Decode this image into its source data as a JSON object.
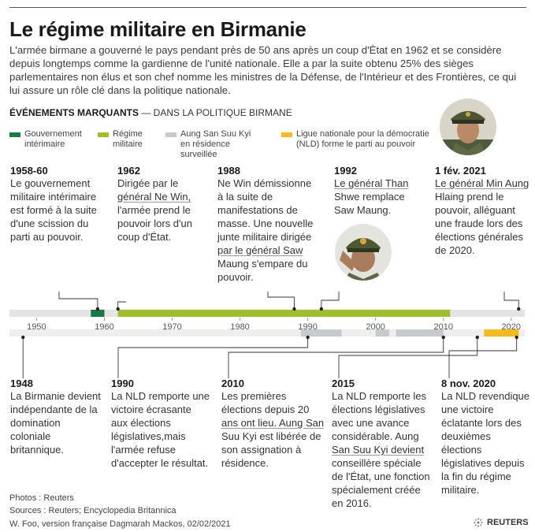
{
  "title": "Le régime militaire en Birmanie",
  "intro": "L'armée birmane a gouverné le pays pendant près de 50 ans après un coup d'État en 1962 et se considère depuis longtemps comme la gardienne de l'unité nationale. Elle a par la suite obtenu 25% des sièges parlementaires non élus et son chef nomme les ministres de la Défense, de l'Intérieur et des Frontières,  ce qui lui assure un rôle clé dans la politique nationale.",
  "subhead": {
    "bold": "ÉVÉNEMENTS MARQUANTS",
    "rest": " — DANS LA POLITIQUE BIRMANE"
  },
  "legend": [
    {
      "label_1": "Gouvernement",
      "label_2": "intérimaire",
      "color": "#1a7a45"
    },
    {
      "label_1": "Régime",
      "label_2": "militaire",
      "color": "#9fbf2a"
    },
    {
      "label_1": "Aung San Suu Kyi",
      "label_2": "en résidence",
      "label_3": "surveillée",
      "color": "#c6c9cd"
    },
    {
      "label_1": "Ligue nationale pour la démocratie",
      "label_2": "(NLD) forme le parti au pouvoir",
      "color": "#f5b91c"
    }
  ],
  "events_top": [
    {
      "date": "1958-60",
      "lines": [
        "Le gouvernement",
        "militaire intérimaire",
        "est formé à la suite",
        "d'une scission du",
        "parti au pouvoir."
      ]
    },
    {
      "date": "1962",
      "lines": [
        "Dirigée par le",
        "général Ne Win,",
        "l'armée prend le",
        "pouvoir lors d'un",
        "coup d'État."
      ]
    },
    {
      "date": "1988",
      "lines": [
        "Ne Win démissionne",
        "à la suite de",
        "manifestations de",
        "masse. Une nouvelle",
        "junte militaire dirigée",
        "par le général Saw",
        "Maung s'empare du",
        "pouvoir."
      ]
    },
    {
      "date": "1992",
      "lines": [
        "Le général Than",
        "Shwe remplace",
        "Saw Maung."
      ]
    },
    {
      "date": "1 fév. 2021",
      "lines": [
        "Le général Min Aung",
        "Hlaing prend le",
        "pouvoir, alléguant",
        "une fraude lors des",
        "élections générales",
        "de 2020."
      ]
    }
  ],
  "events_bottom": [
    {
      "date": "1948",
      "lines": [
        "La Birmanie devient",
        "indépendante de la",
        "domination",
        "coloniale",
        "britannique."
      ]
    },
    {
      "date": "1990",
      "lines": [
        "La NLD remporte une",
        "victoire écrasante",
        "aux élections",
        "législatives,mais",
        "l'armée refuse",
        "d'accepter le résultat."
      ]
    },
    {
      "date": "2010",
      "lines": [
        "Les premières",
        "élections depuis 20",
        "ans ont lieu. Aung San",
        "Suu Kyi est libérée de",
        "son assignation à",
        "résidence."
      ]
    },
    {
      "date": "2015",
      "lines": [
        "La NLD remporte les",
        "élections législatives",
        "avec une avance",
        "considérable. Aung",
        "San Suu Kyi devient",
        "conseillère spéciale",
        "de l'État, une fonction",
        "spécialement créée",
        "en 2016."
      ]
    },
    {
      "date": "8 nov. 2020",
      "lines": [
        "La NLD revendique",
        "une victoire",
        "éclatante lors des",
        "deuxièmes",
        "élections",
        "législatives depuis",
        "la fin du régime",
        "militaire."
      ]
    }
  ],
  "axis": {
    "start": 1946,
    "end": 2022,
    "ticks": [
      "1950",
      "1960",
      "1970",
      "1980",
      "1990",
      "2000",
      "2010",
      "2020"
    ]
  },
  "footer": {
    "photos": "Photos : Reuters",
    "sources": "Sources : Reuters; Encyclopedia Britannica",
    "credit": "W. Foo, version française Dagmarah Mackos, 02/02/2021",
    "brand": "REUTERS"
  }
}
